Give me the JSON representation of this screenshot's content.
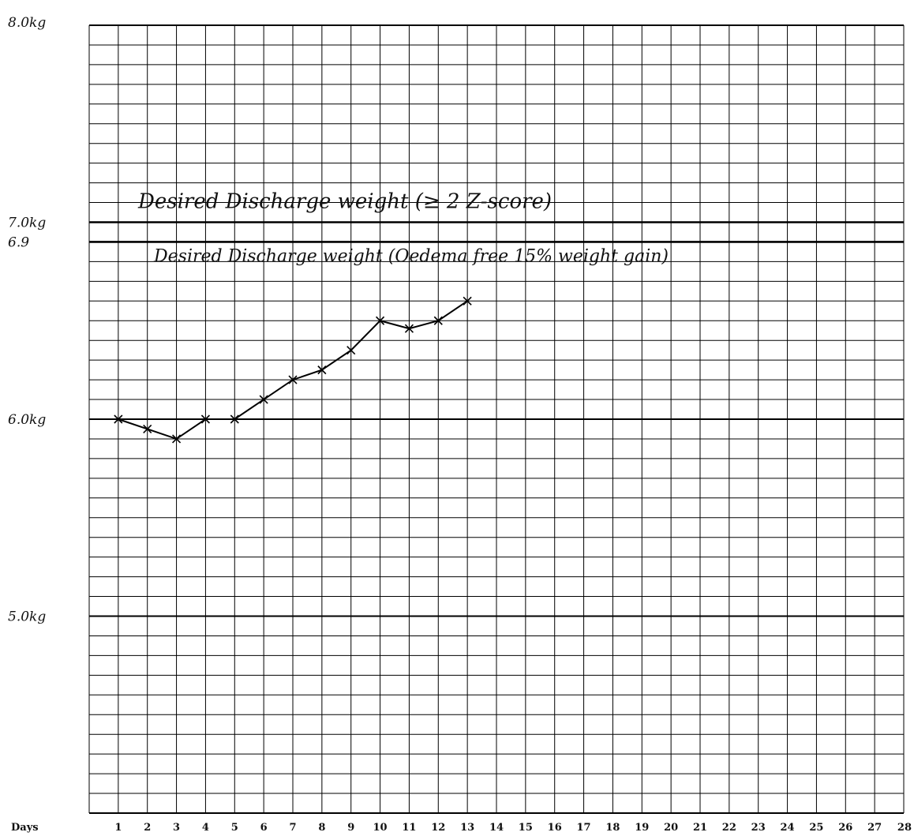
{
  "chart_data": {
    "type": "line",
    "title": "",
    "xlabel": "Days",
    "ylabel": "",
    "xlim": [
      0,
      28
    ],
    "ylim": [
      4.0,
      8.0
    ],
    "grid": true,
    "minor_step_y": 0.1,
    "x_ticks": [
      "1",
      "2",
      "3",
      "4",
      "5",
      "6",
      "7",
      "8",
      "9",
      "10",
      "11",
      "12",
      "13",
      "14",
      "15",
      "16",
      "17",
      "18",
      "19",
      "20",
      "21",
      "22",
      "23",
      "24",
      "25",
      "26",
      "27",
      "28"
    ],
    "y_tick_labels": [
      {
        "value": 8.0,
        "label": "8.0kg"
      },
      {
        "value": 7.0,
        "label": "7.0kg"
      },
      {
        "value": 6.9,
        "label": "6.9"
      },
      {
        "value": 6.0,
        "label": "6.0kg"
      },
      {
        "value": 5.0,
        "label": "5.0kg"
      }
    ],
    "reference_lines": [
      {
        "value": 7.0,
        "label": "Desired Discharge weight (≥ 2 Z-score)"
      },
      {
        "value": 6.9,
        "label": "Desired Discharge weight (Oedema free 15% weight gain)"
      }
    ],
    "series": [
      {
        "x": [
          1,
          2,
          3,
          4,
          5,
          6,
          7,
          8,
          9,
          10,
          11,
          12,
          13
        ],
        "values": [
          6.0,
          5.95,
          5.9,
          6.0,
          6.0,
          6.1,
          6.2,
          6.25,
          6.35,
          6.5,
          6.46,
          6.5,
          6.6
        ]
      }
    ]
  }
}
